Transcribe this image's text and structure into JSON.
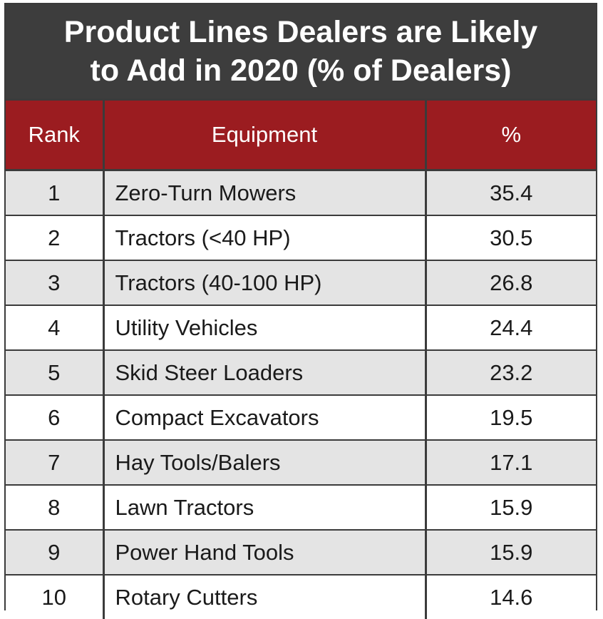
{
  "chart_data": {
    "type": "table",
    "title": "Product Lines Dealers are Likely\nto Add in 2020 (% of Dealers)",
    "columns": [
      "Rank",
      "Equipment",
      "%"
    ],
    "rows": [
      {
        "rank": "1",
        "equipment": "Zero-Turn Mowers",
        "percent": "35.4"
      },
      {
        "rank": "2",
        "equipment": "Tractors (<40 HP)",
        "percent": "30.5"
      },
      {
        "rank": "3",
        "equipment": "Tractors (40-100 HP)",
        "percent": "26.8"
      },
      {
        "rank": "4",
        "equipment": "Utility Vehicles",
        "percent": "24.4"
      },
      {
        "rank": "5",
        "equipment": "Skid Steer Loaders",
        "percent": "23.2"
      },
      {
        "rank": "6",
        "equipment": "Compact Excavators",
        "percent": "19.5"
      },
      {
        "rank": "7",
        "equipment": "Hay Tools/Balers",
        "percent": "17.1"
      },
      {
        "rank": "8",
        "equipment": "Lawn Tractors",
        "percent": "15.9"
      },
      {
        "rank": "9",
        "equipment": "Power Hand Tools",
        "percent": "15.9"
      },
      {
        "rank": "10",
        "equipment": "Rotary Cutters",
        "percent": "14.6"
      }
    ]
  },
  "colors": {
    "title_bg": "#3d3d3d",
    "header_bg": "#9b1c20",
    "row_alt": "#e4e4e4",
    "border": "#3b3b3b"
  }
}
